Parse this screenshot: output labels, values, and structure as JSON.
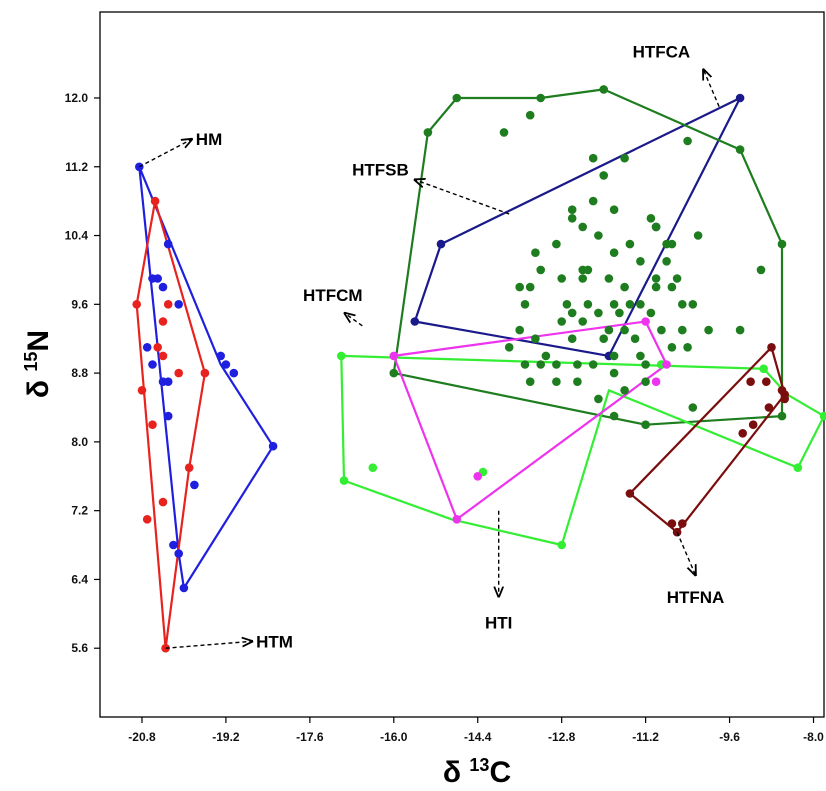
{
  "chart_data": {
    "type": "scatter",
    "xlabel": "δ 13C",
    "xlabel_parts": {
      "symbol": "δ ",
      "sup": "13",
      "element": "C"
    },
    "ylabel": "δ 15N",
    "ylabel_parts": {
      "symbol": "δ ",
      "sup": "15",
      "element": "N"
    },
    "xlim": [
      -21.6,
      -7.8
    ],
    "ylim": [
      4.8,
      13.0
    ],
    "xticks": [
      "-20.8",
      "-19.2",
      "-17.6",
      "-16.0",
      "-14.4",
      "-12.8",
      "-11.2",
      "-9.6",
      "-8.0"
    ],
    "yticks": [
      "5.6",
      "6.4",
      "7.2",
      "8.0",
      "8.8",
      "9.6",
      "10.4",
      "11.2",
      "12.0"
    ],
    "grid": false,
    "series": [
      {
        "name": "HM",
        "color": "#1f1fe0",
        "hull": [
          [
            -20.85,
            11.2
          ],
          [
            -19.3,
            8.9
          ],
          [
            -18.3,
            7.95
          ],
          [
            -20.0,
            6.3
          ],
          [
            -20.1,
            6.7
          ],
          [
            -20.85,
            11.2
          ]
        ],
        "points": [
          [
            -20.85,
            11.2
          ],
          [
            -20.3,
            10.3
          ],
          [
            -20.5,
            9.9
          ],
          [
            -20.6,
            9.9
          ],
          [
            -20.4,
            9.8
          ],
          [
            -20.1,
            9.6
          ],
          [
            -19.3,
            9.0
          ],
          [
            -19.2,
            8.9
          ],
          [
            -19.05,
            8.8
          ],
          [
            -20.6,
            8.9
          ],
          [
            -20.7,
            9.1
          ],
          [
            -20.4,
            8.7
          ],
          [
            -20.3,
            8.7
          ],
          [
            -20.3,
            8.3
          ],
          [
            -19.8,
            7.5
          ],
          [
            -20.2,
            6.8
          ],
          [
            -20.1,
            6.7
          ],
          [
            -20.0,
            6.3
          ],
          [
            -18.3,
            7.95
          ]
        ]
      },
      {
        "name": "HTM",
        "color": "#e8231f",
        "hull": [
          [
            -20.55,
            10.8
          ],
          [
            -20.9,
            9.6
          ],
          [
            -20.35,
            5.6
          ],
          [
            -19.9,
            7.7
          ],
          [
            -19.6,
            8.8
          ],
          [
            -20.55,
            10.8
          ]
        ],
        "points": [
          [
            -20.55,
            10.8
          ],
          [
            -20.9,
            9.6
          ],
          [
            -20.3,
            9.6
          ],
          [
            -20.4,
            9.4
          ],
          [
            -20.4,
            9.0
          ],
          [
            -20.5,
            9.1
          ],
          [
            -20.1,
            8.8
          ],
          [
            -19.6,
            8.8
          ],
          [
            -20.8,
            8.6
          ],
          [
            -20.6,
            8.2
          ],
          [
            -19.9,
            7.7
          ],
          [
            -20.4,
            7.3
          ],
          [
            -20.7,
            7.1
          ],
          [
            -20.35,
            5.6
          ]
        ]
      },
      {
        "name": "HTFCA",
        "color": "#1a1a8a",
        "hull": [
          [
            -15.6,
            9.4
          ],
          [
            -15.1,
            10.3
          ],
          [
            -9.4,
            12.0
          ],
          [
            -11.9,
            9.0
          ],
          [
            -15.6,
            9.4
          ]
        ],
        "points": [
          [
            -9.4,
            12.0
          ],
          [
            -15.1,
            10.3
          ],
          [
            -15.6,
            9.4
          ],
          [
            -11.9,
            9.0
          ],
          [
            -11.0,
            10.5
          ]
        ]
      },
      {
        "name": "HTFSB",
        "color": "#1e7d1e",
        "hull": [
          [
            -14.8,
            12.0
          ],
          [
            -15.35,
            11.6
          ],
          [
            -16.0,
            8.8
          ],
          [
            -11.2,
            8.2
          ],
          [
            -8.6,
            8.3
          ],
          [
            -8.6,
            10.3
          ],
          [
            -9.4,
            11.4
          ],
          [
            -12.0,
            12.1
          ],
          [
            -13.2,
            12.0
          ],
          [
            -14.8,
            12.0
          ]
        ],
        "points": [
          [
            -13.4,
            11.8
          ],
          [
            -13.2,
            12.0
          ],
          [
            -12.0,
            12.1
          ],
          [
            -13.9,
            11.6
          ],
          [
            -9.4,
            11.4
          ],
          [
            -10.4,
            11.5
          ],
          [
            -11.6,
            11.3
          ],
          [
            -12.2,
            11.3
          ],
          [
            -12.0,
            11.1
          ],
          [
            -12.6,
            10.7
          ],
          [
            -12.2,
            10.8
          ],
          [
            -11.0,
            10.5
          ],
          [
            -12.6,
            10.6
          ],
          [
            -11.8,
            10.7
          ],
          [
            -12.4,
            10.5
          ],
          [
            -11.1,
            10.6
          ],
          [
            -12.1,
            10.4
          ],
          [
            -13.3,
            10.2
          ],
          [
            -12.9,
            10.3
          ],
          [
            -11.5,
            10.3
          ],
          [
            -10.8,
            10.3
          ],
          [
            -10.7,
            10.3
          ],
          [
            -10.2,
            10.4
          ],
          [
            -8.6,
            10.3
          ],
          [
            -11.8,
            10.2
          ],
          [
            -13.2,
            10.0
          ],
          [
            -12.4,
            10.0
          ],
          [
            -12.3,
            10.0
          ],
          [
            -11.3,
            10.1
          ],
          [
            -10.8,
            10.1
          ],
          [
            -9.0,
            10.0
          ],
          [
            -12.8,
            9.9
          ],
          [
            -12.4,
            9.9
          ],
          [
            -11.9,
            9.9
          ],
          [
            -11.0,
            9.9
          ],
          [
            -10.6,
            9.9
          ],
          [
            -13.6,
            9.8
          ],
          [
            -13.4,
            9.8
          ],
          [
            -11.6,
            9.8
          ],
          [
            -11.0,
            9.8
          ],
          [
            -10.7,
            9.8
          ],
          [
            -13.5,
            9.6
          ],
          [
            -12.7,
            9.6
          ],
          [
            -12.3,
            9.6
          ],
          [
            -11.8,
            9.6
          ],
          [
            -11.5,
            9.6
          ],
          [
            -11.3,
            9.6
          ],
          [
            -10.5,
            9.6
          ],
          [
            -10.3,
            9.6
          ],
          [
            -12.6,
            9.5
          ],
          [
            -12.1,
            9.5
          ],
          [
            -11.7,
            9.5
          ],
          [
            -11.1,
            9.5
          ],
          [
            -12.8,
            9.4
          ],
          [
            -12.4,
            9.4
          ],
          [
            -11.9,
            9.3
          ],
          [
            -11.6,
            9.3
          ],
          [
            -10.9,
            9.3
          ],
          [
            -10.5,
            9.3
          ],
          [
            -9.4,
            9.3
          ],
          [
            -13.6,
            9.3
          ],
          [
            -13.3,
            9.2
          ],
          [
            -12.6,
            9.2
          ],
          [
            -12.0,
            9.2
          ],
          [
            -11.4,
            9.2
          ],
          [
            -10.0,
            9.3
          ],
          [
            -13.8,
            9.1
          ],
          [
            -13.1,
            9.0
          ],
          [
            -11.8,
            9.0
          ],
          [
            -11.3,
            9.0
          ],
          [
            -10.7,
            9.1
          ],
          [
            -10.4,
            9.1
          ],
          [
            -13.5,
            8.9
          ],
          [
            -13.2,
            8.9
          ],
          [
            -12.9,
            8.9
          ],
          [
            -12.5,
            8.9
          ],
          [
            -12.2,
            8.9
          ],
          [
            -11.2,
            8.9
          ],
          [
            -10.9,
            8.9
          ],
          [
            -13.4,
            8.7
          ],
          [
            -12.9,
            8.7
          ],
          [
            -12.5,
            8.7
          ],
          [
            -11.8,
            8.8
          ],
          [
            -11.2,
            8.7
          ],
          [
            -11.6,
            8.6
          ],
          [
            -12.1,
            8.5
          ],
          [
            -11.8,
            8.3
          ],
          [
            -10.3,
            8.4
          ],
          [
            -16.0,
            8.8
          ],
          [
            -11.2,
            8.2
          ],
          [
            -8.6,
            8.3
          ],
          [
            -15.35,
            11.6
          ],
          [
            -14.8,
            12.0
          ]
        ]
      },
      {
        "name": "HTFCM",
        "color": "#33ee33",
        "hull": [
          [
            -17.0,
            9.0
          ],
          [
            -8.95,
            8.85
          ],
          [
            -8.5,
            8.55
          ],
          [
            -7.8,
            8.3
          ],
          [
            -8.3,
            7.7
          ],
          [
            -11.9,
            8.6
          ],
          [
            -12.8,
            6.8
          ],
          [
            -14.9,
            7.1
          ],
          [
            -16.95,
            7.55
          ],
          [
            -17.0,
            9.0
          ]
        ],
        "points": [
          [
            -17.0,
            9.0
          ],
          [
            -8.95,
            8.85
          ],
          [
            -7.8,
            8.3
          ],
          [
            -8.3,
            7.7
          ],
          [
            -12.8,
            6.8
          ],
          [
            -16.95,
            7.55
          ],
          [
            -16.4,
            7.7
          ],
          [
            -14.3,
            7.65
          ],
          [
            -10.9,
            8.9
          ]
        ]
      },
      {
        "name": "HTI",
        "color": "#ee33ee",
        "hull": [
          [
            -16.0,
            9.0
          ],
          [
            -11.2,
            9.4
          ],
          [
            -10.8,
            8.9
          ],
          [
            -14.8,
            7.1
          ],
          [
            -16.0,
            9.0
          ]
        ],
        "points": [
          [
            -16.0,
            9.0
          ],
          [
            -11.2,
            9.4
          ],
          [
            -10.8,
            8.9
          ],
          [
            -11.0,
            8.7
          ],
          [
            -14.8,
            7.1
          ],
          [
            -14.4,
            7.6
          ]
        ]
      },
      {
        "name": "HTFNA",
        "color": "#7a0d0d",
        "hull": [
          [
            -8.8,
            9.1
          ],
          [
            -11.5,
            7.4
          ],
          [
            -10.6,
            6.95
          ],
          [
            -8.55,
            8.55
          ],
          [
            -8.8,
            9.1
          ]
        ],
        "points": [
          [
            -8.8,
            9.1
          ],
          [
            -11.5,
            7.4
          ],
          [
            -10.7,
            7.05
          ],
          [
            -10.5,
            7.05
          ],
          [
            -10.6,
            6.95
          ],
          [
            -8.55,
            8.55
          ],
          [
            -8.6,
            8.6
          ],
          [
            -8.55,
            8.5
          ],
          [
            -8.85,
            8.4
          ],
          [
            -9.15,
            8.2
          ],
          [
            -9.35,
            8.1
          ],
          [
            -8.9,
            8.7
          ],
          [
            -9.2,
            8.7
          ]
        ]
      }
    ],
    "annotations": [
      {
        "text": "HM",
        "series": "HM",
        "anchor": [
          -20.85,
          11.2
        ],
        "label_at": [
          -19.85,
          11.52
        ]
      },
      {
        "text": "HTM",
        "series": "HTM",
        "anchor": [
          -20.35,
          5.6
        ],
        "label_at": [
          -18.7,
          5.68
        ]
      },
      {
        "text": "HTFCA",
        "series": "HTFCA",
        "anchor": [
          -9.8,
          11.9
        ],
        "label_at": [
          -10.9,
          12.33
        ]
      },
      {
        "text": "HTFSB",
        "series": "HTFSB",
        "anchor": [
          -13.8,
          10.65
        ],
        "label_at": [
          -15.6,
          11.05
        ]
      },
      {
        "text": "HTFCM",
        "series": "HTFCM",
        "anchor": [
          -16.6,
          9.35
        ],
        "label_at": [
          -17.2,
          9.45
        ]
      },
      {
        "text": "HTI",
        "series": "HTI",
        "anchor": [
          -14.0,
          7.2
        ],
        "label_at": [
          -14.0,
          6.2
        ]
      },
      {
        "text": "HTFNA",
        "series": "HTFNA",
        "anchor": [
          -10.6,
          6.95
        ],
        "label_at": [
          -10.25,
          6.45
        ]
      }
    ]
  }
}
